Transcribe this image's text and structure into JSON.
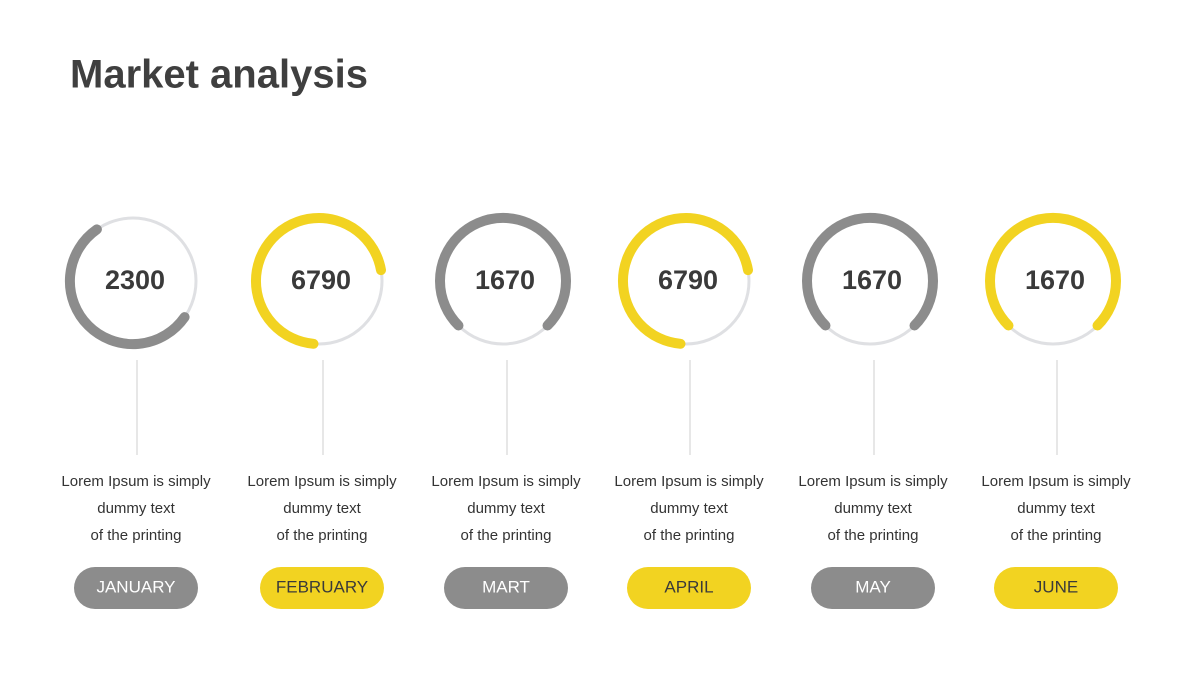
{
  "title": "Market analysis",
  "items": [
    {
      "value": 2300,
      "lines": [
        "Lorem Ipsum is simply",
        "dummy text",
        "of the printing"
      ],
      "month": "JANUARY"
    },
    {
      "value": 6790,
      "lines": [
        "Lorem Ipsum is simply",
        "dummy text",
        "of the printing"
      ],
      "month": "FEBRUARY"
    },
    {
      "value": 1670,
      "lines": [
        "Lorem Ipsum is simply",
        "dummy text",
        "of the printing"
      ],
      "month": "MART"
    },
    {
      "value": 6790,
      "lines": [
        "Lorem Ipsum is simply",
        "dummy text",
        "of the printing"
      ],
      "month": "APRIL"
    },
    {
      "value": 1670,
      "lines": [
        "Lorem Ipsum is simply",
        "dummy text",
        "of the printing"
      ],
      "month": "MAY"
    },
    {
      "value": 1670,
      "lines": [
        "Lorem Ipsum is simply",
        "dummy text",
        "of the printing"
      ],
      "month": "JUNE"
    }
  ]
}
